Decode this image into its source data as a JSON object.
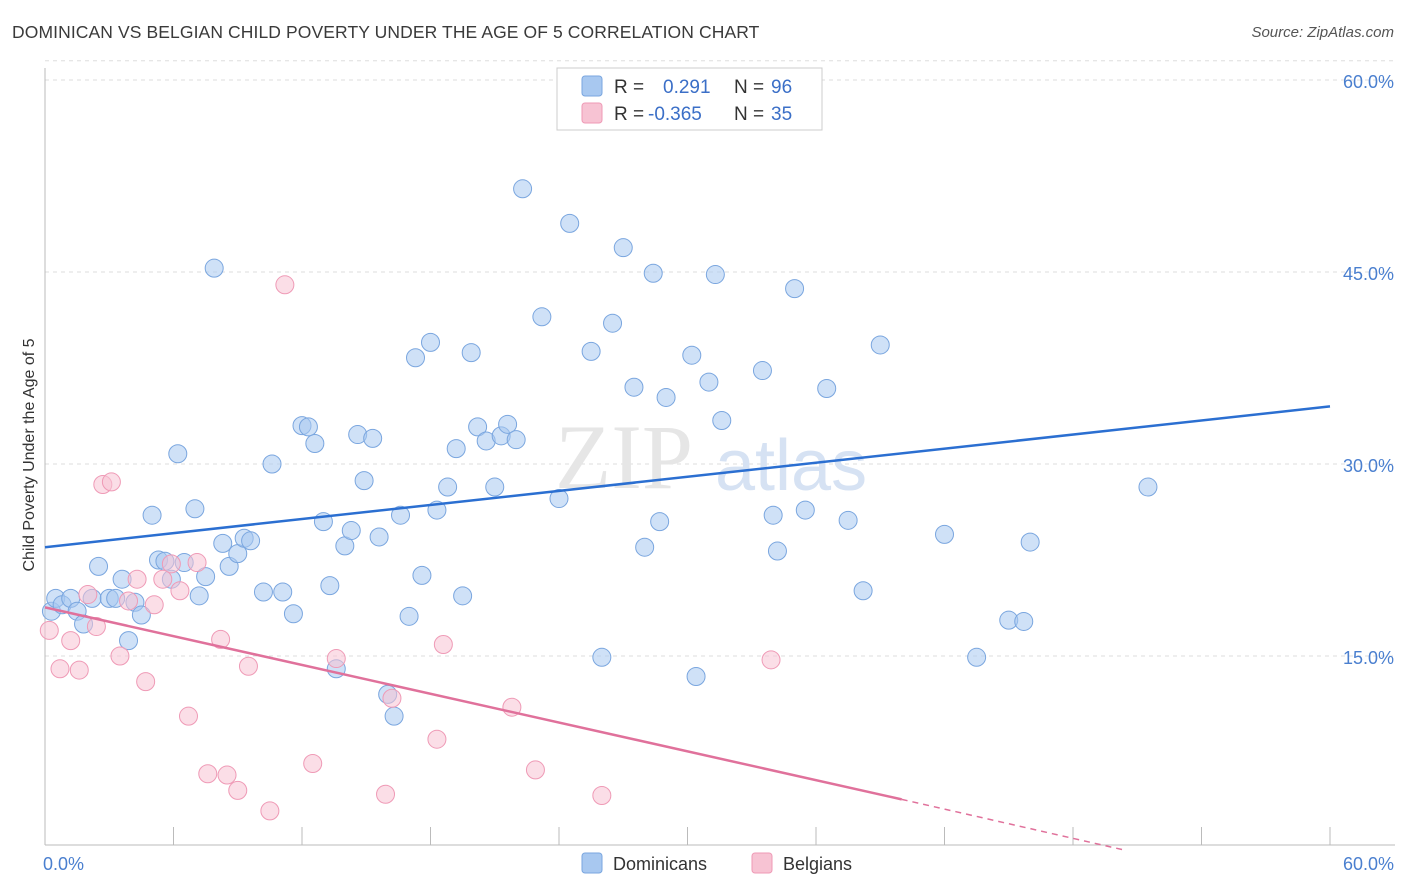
{
  "title": "DOMINICAN VS BELGIAN CHILD POVERTY UNDER THE AGE OF 5 CORRELATION CHART",
  "source": "Source: ZipAtlas.com",
  "chart_data": {
    "type": "scatter",
    "ylabel": "Child Poverty Under the Age of 5",
    "xlim": [
      0,
      60
    ],
    "ylim": [
      0,
      62
    ],
    "x_tick_labels": [
      "0.0%",
      "60.0%"
    ],
    "y_ticks": [
      15,
      30,
      45,
      60
    ],
    "y_tick_labels": [
      "15.0%",
      "30.0%",
      "45.0%",
      "60.0%"
    ],
    "grid": true,
    "legend_placement": "top-center",
    "series": [
      {
        "name": "Dominicans",
        "color": "#a8c8f0",
        "stroke": "#7aa6df",
        "line_color": "#2b6fd1",
        "R": "0.291",
        "N": "96",
        "trend": {
          "x0": 0,
          "y0": 23.5,
          "x1": 60,
          "y1": 34.5
        },
        "points": [
          [
            0.3,
            18.5
          ],
          [
            0.5,
            19.5
          ],
          [
            0.8,
            19
          ],
          [
            1.2,
            19.5
          ],
          [
            1.5,
            18.5
          ],
          [
            1.8,
            17.5
          ],
          [
            2.2,
            19.5
          ],
          [
            2.5,
            22
          ],
          [
            3.0,
            19.5
          ],
          [
            3.3,
            19.5
          ],
          [
            3.6,
            21
          ],
          [
            3.9,
            16.2
          ],
          [
            4.2,
            19.2
          ],
          [
            4.5,
            18.2
          ],
          [
            5.0,
            26
          ],
          [
            5.3,
            22.5
          ],
          [
            5.6,
            22.4
          ],
          [
            5.9,
            21
          ],
          [
            6.2,
            30.8
          ],
          [
            6.5,
            22.3
          ],
          [
            7.0,
            26.5
          ],
          [
            7.2,
            19.7
          ],
          [
            7.5,
            21.2
          ],
          [
            7.9,
            45.3
          ],
          [
            8.3,
            23.8
          ],
          [
            8.6,
            22
          ],
          [
            9.0,
            23
          ],
          [
            9.3,
            24.2
          ],
          [
            9.6,
            24
          ],
          [
            10.2,
            20
          ],
          [
            10.6,
            30
          ],
          [
            11.1,
            20
          ],
          [
            11.6,
            18.3
          ],
          [
            12.0,
            33
          ],
          [
            12.3,
            32.9
          ],
          [
            12.6,
            31.6
          ],
          [
            13.0,
            25.5
          ],
          [
            13.3,
            20.5
          ],
          [
            13.6,
            14
          ],
          [
            14.0,
            23.6
          ],
          [
            14.3,
            24.8
          ],
          [
            14.6,
            32.3
          ],
          [
            14.9,
            28.7
          ],
          [
            15.3,
            32
          ],
          [
            15.6,
            24.3
          ],
          [
            16.0,
            12
          ],
          [
            16.3,
            10.3
          ],
          [
            16.6,
            26
          ],
          [
            17.0,
            18.1
          ],
          [
            17.3,
            38.3
          ],
          [
            17.6,
            21.3
          ],
          [
            18.0,
            39.5
          ],
          [
            18.3,
            26.4
          ],
          [
            18.8,
            28.2
          ],
          [
            19.2,
            31.2
          ],
          [
            19.5,
            19.7
          ],
          [
            19.9,
            38.7
          ],
          [
            20.2,
            32.9
          ],
          [
            20.6,
            31.8
          ],
          [
            21.0,
            28.2
          ],
          [
            21.3,
            32.2
          ],
          [
            21.6,
            33.1
          ],
          [
            22.0,
            31.9
          ],
          [
            22.3,
            51.5
          ],
          [
            23.2,
            41.5
          ],
          [
            24.0,
            27.3
          ],
          [
            24.5,
            48.8
          ],
          [
            25.5,
            38.8
          ],
          [
            26.0,
            14.9
          ],
          [
            26.5,
            41
          ],
          [
            27.0,
            46.9
          ],
          [
            27.5,
            36
          ],
          [
            28.0,
            23.5
          ],
          [
            28.4,
            44.9
          ],
          [
            28.7,
            25.5
          ],
          [
            29.0,
            35.2
          ],
          [
            30.2,
            38.5
          ],
          [
            30.4,
            13.4
          ],
          [
            31.0,
            36.4
          ],
          [
            31.3,
            44.8
          ],
          [
            31.6,
            33.4
          ],
          [
            33.5,
            37.3
          ],
          [
            34.0,
            26
          ],
          [
            34.2,
            23.2
          ],
          [
            35.0,
            43.7
          ],
          [
            35.5,
            26.4
          ],
          [
            36.5,
            35.9
          ],
          [
            37.5,
            25.6
          ],
          [
            38.2,
            20.1
          ],
          [
            39.0,
            39.3
          ],
          [
            42.0,
            24.5
          ],
          [
            43.5,
            14.9
          ],
          [
            45.0,
            17.8
          ],
          [
            45.7,
            17.7
          ],
          [
            46.0,
            23.9
          ],
          [
            51.5,
            28.2
          ]
        ]
      },
      {
        "name": "Belgians",
        "color": "#f7c3d3",
        "stroke": "#ef9ab6",
        "line_color": "#e0719b",
        "R": "-0.365",
        "N": "35",
        "trend": {
          "x0": 0,
          "y0": 18.8,
          "x1": 40,
          "y1": 3.8
        },
        "trend_ext": {
          "x0": 40,
          "y0": 3.8,
          "x1": 50.5,
          "y1": -0.2
        },
        "points": [
          [
            0.2,
            17
          ],
          [
            0.7,
            14
          ],
          [
            1.2,
            16.2
          ],
          [
            1.6,
            13.9
          ],
          [
            2.0,
            19.8
          ],
          [
            2.4,
            17.3
          ],
          [
            2.7,
            28.4
          ],
          [
            3.1,
            28.6
          ],
          [
            3.5,
            15
          ],
          [
            3.9,
            19.3
          ],
          [
            4.3,
            21
          ],
          [
            4.7,
            13
          ],
          [
            5.1,
            19
          ],
          [
            5.5,
            21
          ],
          [
            5.9,
            22.2
          ],
          [
            6.3,
            20.1
          ],
          [
            6.7,
            10.3
          ],
          [
            7.1,
            22.3
          ],
          [
            7.6,
            5.8
          ],
          [
            8.2,
            16.3
          ],
          [
            8.5,
            5.7
          ],
          [
            9.0,
            4.5
          ],
          [
            9.5,
            14.2
          ],
          [
            10.5,
            2.9
          ],
          [
            11.2,
            44
          ],
          [
            12.5,
            6.6
          ],
          [
            13.6,
            14.8
          ],
          [
            15.9,
            4.2
          ],
          [
            16.2,
            11.7
          ],
          [
            18.3,
            8.5
          ],
          [
            18.6,
            15.9
          ],
          [
            21.8,
            11
          ],
          [
            22.9,
            6.1
          ],
          [
            26.0,
            4.1
          ],
          [
            33.9,
            14.7
          ]
        ]
      }
    ]
  }
}
